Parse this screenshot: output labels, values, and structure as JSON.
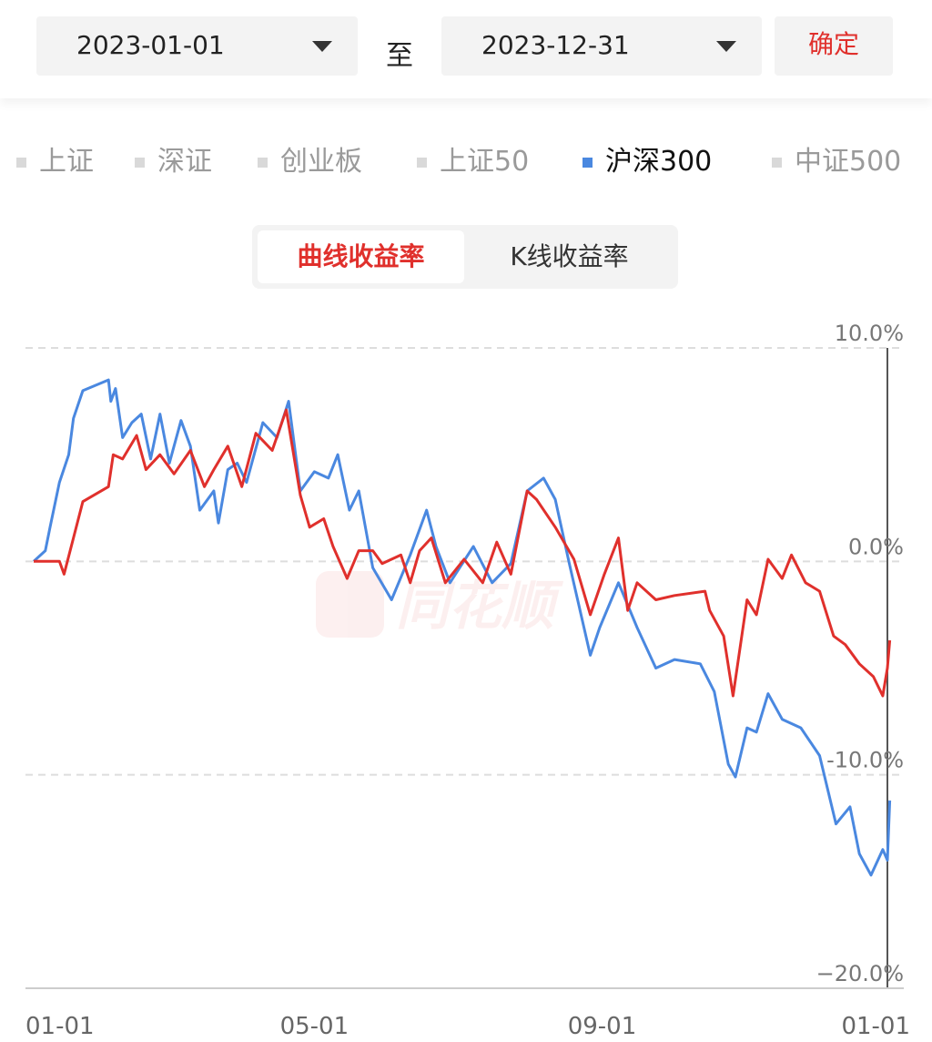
{
  "date_range": {
    "start": "2023-01-01",
    "separator": "至",
    "end": "2023-12-31",
    "confirm": "确定"
  },
  "index_tabs": [
    {
      "label": "上证",
      "active": false
    },
    {
      "label": "深证",
      "active": false
    },
    {
      "label": "创业板",
      "active": false
    },
    {
      "label": "上证50",
      "active": false
    },
    {
      "label": "沪深300",
      "active": true
    },
    {
      "label": "中证500",
      "active": false
    }
  ],
  "mode_tabs": [
    {
      "label": "曲线收益率",
      "active": true
    },
    {
      "label": "K线收益率",
      "active": false
    }
  ],
  "watermark": "同花顺",
  "chart_data": {
    "type": "line",
    "xlim": [
      0,
      367
    ],
    "xticks": [
      {
        "value": 0,
        "label": "01-01"
      },
      {
        "value": 120,
        "label": "05-01"
      },
      {
        "value": 243,
        "label": "09-01"
      },
      {
        "value": 365,
        "label": "01-01"
      }
    ],
    "ylim": [
      -20,
      10
    ],
    "yticks": [
      {
        "value": 10,
        "label": "10.0%"
      },
      {
        "value": 0,
        "label": "0.0%"
      },
      {
        "value": -10,
        "label": "-10.0%"
      },
      {
        "value": -20,
        "label": "−20.0%"
      }
    ],
    "grid": true,
    "series": [
      {
        "color": "#4a88e0",
        "x": [
          0,
          5,
          7,
          11,
          15,
          17,
          21,
          32,
          33,
          35,
          38,
          42,
          46,
          50,
          54,
          58,
          63,
          67,
          71,
          77,
          79,
          83,
          87,
          91,
          98,
          104,
          109,
          114,
          120,
          126,
          130,
          135,
          139,
          145,
          153,
          161,
          168,
          172,
          178,
          188,
          196,
          204,
          211,
          218,
          223,
          229,
          238,
          242,
          250,
          258,
          266,
          274,
          285,
          291,
          297,
          300,
          305,
          309,
          314,
          320,
          328,
          336,
          343,
          349,
          353,
          358,
          363,
          365,
          366
        ],
        "values": [
          0,
          0.5,
          1.6,
          3.7,
          5.0,
          6.7,
          8.0,
          8.5,
          7.5,
          8.1,
          5.8,
          6.5,
          6.9,
          4.8,
          6.9,
          4.6,
          6.6,
          5.4,
          2.4,
          3.3,
          1.8,
          4.3,
          4.6,
          3.7,
          6.5,
          5.8,
          7.5,
          3.3,
          4.2,
          3.9,
          5.0,
          2.4,
          3.3,
          -0.3,
          -1.8,
          0.3,
          2.4,
          0.7,
          -1.0,
          0.7,
          -1.0,
          -0.1,
          3.3,
          3.9,
          2.9,
          -0.1,
          -4.4,
          -3.1,
          -1.0,
          -3.1,
          -5.0,
          -4.6,
          -4.8,
          -6.1,
          -9.5,
          -10.1,
          -7.8,
          -8.0,
          -6.2,
          -7.4,
          -7.8,
          -9.1,
          -12.3,
          -11.5,
          -13.7,
          -14.7,
          -13.5,
          -14.0,
          -11.2
        ]
      },
      {
        "color": "#e0302c",
        "x": [
          0,
          11,
          13,
          17,
          21,
          32,
          34,
          38,
          44,
          48,
          54,
          60,
          67,
          73,
          77,
          83,
          89,
          95,
          102,
          108,
          114,
          118,
          124,
          128,
          134,
          139,
          145,
          149,
          157,
          161,
          165,
          170,
          176,
          184,
          192,
          198,
          204,
          211,
          215,
          223,
          231,
          238,
          244,
          250,
          254,
          258,
          266,
          274,
          287,
          289,
          295,
          299,
          305,
          309,
          314,
          320,
          324,
          330,
          336,
          342,
          347,
          353,
          359,
          363,
          365,
          366
        ],
        "values": [
          0,
          0,
          -0.6,
          1.1,
          2.8,
          3.5,
          5.0,
          4.8,
          5.9,
          4.3,
          5.0,
          4.1,
          5.2,
          3.5,
          4.3,
          5.4,
          3.5,
          6.0,
          5.2,
          7.1,
          3.1,
          1.6,
          2.0,
          0.7,
          -0.8,
          0.5,
          0.5,
          -0.1,
          0.3,
          -1.0,
          0.5,
          1.1,
          -1.0,
          0.1,
          -1.0,
          0.9,
          -0.6,
          3.3,
          2.9,
          1.6,
          0.1,
          -2.5,
          -0.6,
          1.1,
          -2.3,
          -1.0,
          -1.8,
          -1.6,
          -1.4,
          -2.3,
          -3.5,
          -6.3,
          -1.8,
          -2.5,
          0.1,
          -0.8,
          0.3,
          -1.0,
          -1.4,
          -3.5,
          -3.9,
          -4.8,
          -5.4,
          -6.3,
          -5.0,
          -3.7
        ]
      }
    ]
  }
}
